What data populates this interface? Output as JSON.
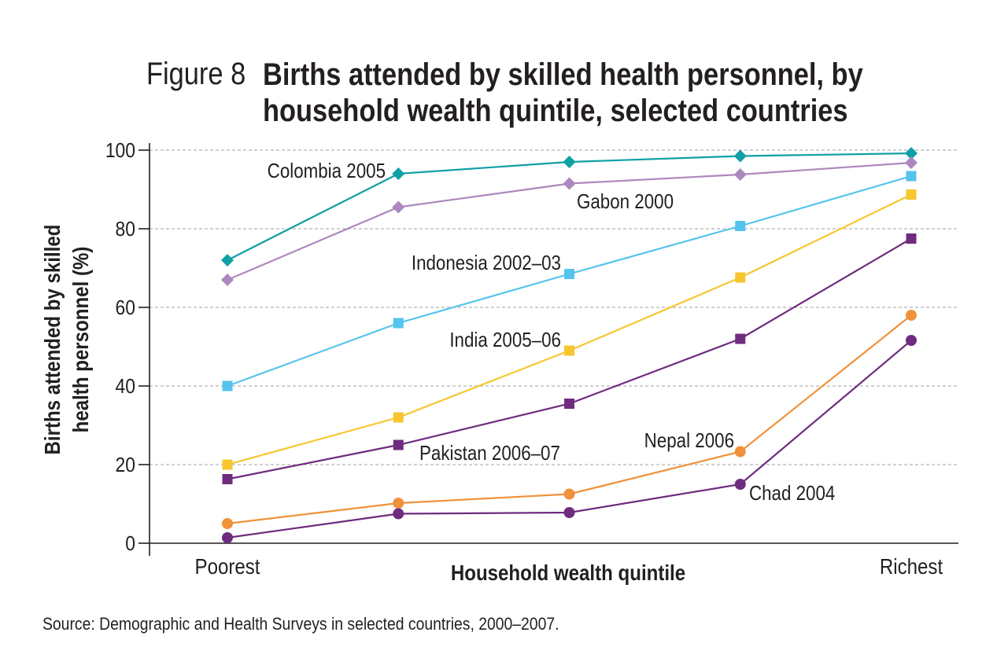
{
  "figure_number": "Figure 8",
  "title": "Births attended by skilled health personnel, by household wealth quintile, selected countries",
  "source": "Source: Demographic and Health Surveys in selected countries, 2000–2007.",
  "chart_data": {
    "type": "line",
    "title": "Births attended by skilled health personnel, by household wealth quintile, selected countries",
    "xlabel": "Household wealth quintile",
    "ylabel_lines": [
      "Births attended by skilled",
      "health personnel (%)"
    ],
    "x_tick_labels": [
      "Poorest",
      "",
      "",
      "",
      "Richest"
    ],
    "y_ticks": [
      0,
      20,
      40,
      60,
      80,
      100
    ],
    "ylim": [
      0,
      100
    ],
    "grid": true,
    "series": [
      {
        "name": "Colombia 2005",
        "marker": "diamond",
        "color": "#0f9fa6",
        "values": [
          72,
          94,
          97,
          98.5,
          99.2
        ]
      },
      {
        "name": "Gabon 2000",
        "marker": "diamond",
        "color": "#ad88bf",
        "values": [
          67,
          85.5,
          91.5,
          93.8,
          96.8
        ]
      },
      {
        "name": "Indonesia 2002–03",
        "marker": "square",
        "color": "#55c4ed",
        "values": [
          40,
          56,
          68.5,
          80.7,
          93.4
        ]
      },
      {
        "name": "India 2005–06",
        "marker": "square",
        "color": "#f7c62f",
        "values": [
          20,
          32,
          49,
          67.6,
          88.7
        ]
      },
      {
        "name": "Pakistan 2006–07",
        "marker": "square",
        "color": "#6f2b7f",
        "values": [
          16.3,
          25,
          35.5,
          52,
          77.5
        ]
      },
      {
        "name": "Nepal 2006",
        "marker": "circle",
        "color": "#f0913b",
        "values": [
          5,
          10.2,
          12.5,
          23.3,
          58
        ]
      },
      {
        "name": "Chad 2004",
        "marker": "circle",
        "color": "#6f2b7f",
        "values": [
          1.4,
          7.5,
          7.8,
          15,
          51.6
        ]
      }
    ]
  }
}
